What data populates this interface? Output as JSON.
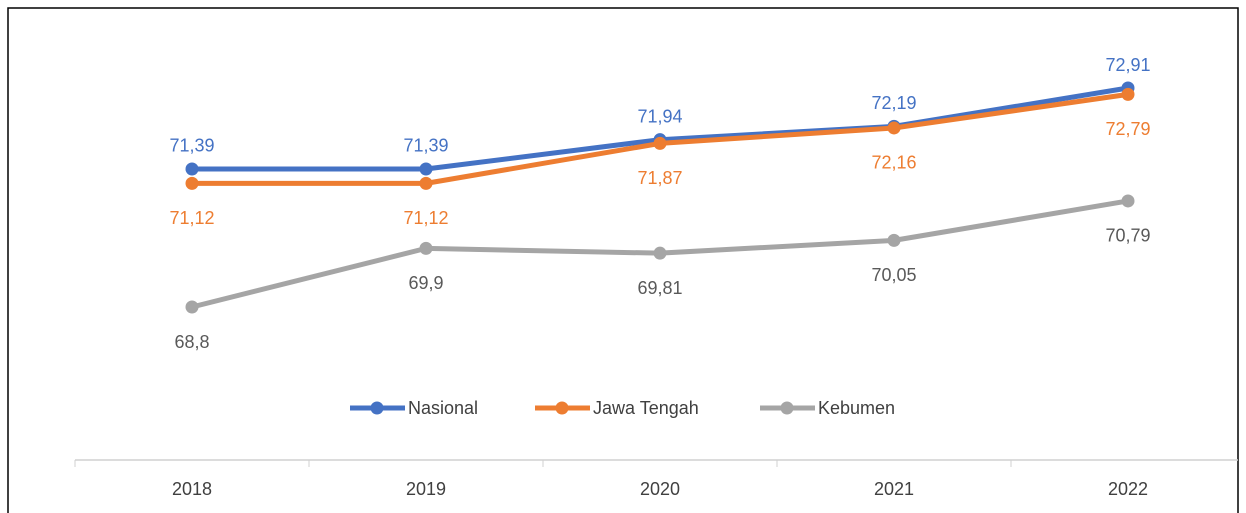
{
  "chart_data": {
    "type": "line",
    "categories": [
      "2018",
      "2019",
      "2020",
      "2021",
      "2022"
    ],
    "series": [
      {
        "name": "Nasional",
        "color": "#4472c4",
        "values": [
          71.39,
          71.39,
          71.94,
          72.19,
          72.91
        ],
        "value_labels": [
          "71,39",
          "71,39",
          "71,94",
          "72,19",
          "72,91"
        ]
      },
      {
        "name": "Jawa Tengah",
        "color": "#ed7d31",
        "values": [
          71.12,
          71.12,
          71.87,
          72.16,
          72.79
        ],
        "value_labels": [
          "71,12",
          "71,12",
          "71,87",
          "72,16",
          "72,79"
        ]
      },
      {
        "name": "Kebumen",
        "color": "#a5a5a5",
        "values": [
          68.8,
          69.9,
          69.81,
          70.05,
          70.79
        ],
        "value_labels": [
          "68,8",
          "69,9",
          "69,81",
          "70,05",
          "70,79"
        ]
      }
    ],
    "legend": "bottom"
  }
}
